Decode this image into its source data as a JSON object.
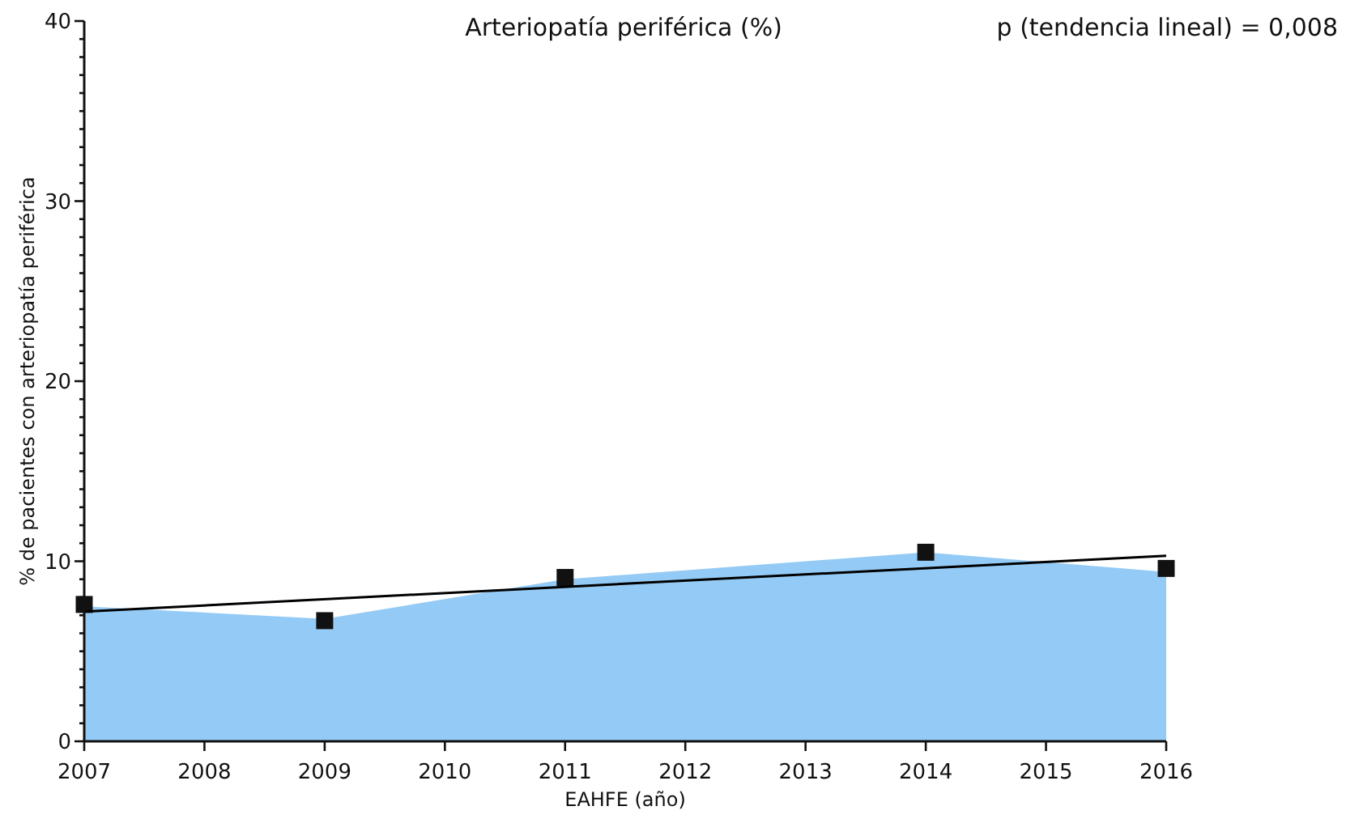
{
  "chart_data": {
    "type": "area",
    "title": "Arteriopatía periférica (%)",
    "xlabel": "EAHFE (año)",
    "ylabel": "% de pacientes con arteriopatía periférica",
    "annotations": [
      "p (tendencia lineal) = 0,008"
    ],
    "x": [
      2007,
      2009,
      2011,
      2014,
      2016
    ],
    "xlim": [
      2007,
      2016
    ],
    "xticks": [
      2007,
      2008,
      2009,
      2010,
      2011,
      2012,
      2013,
      2014,
      2015,
      2016
    ],
    "ylim": [
      0,
      40
    ],
    "yticks": [
      0,
      {
        "value": 1,
        "label": null
      },
      {
        "value": 2,
        "label": null
      },
      {
        "value": 3,
        "label": null
      },
      {
        "value": 4,
        "label": null
      },
      {
        "value": 5,
        "label": null
      },
      {
        "value": 6,
        "label": null
      },
      {
        "value": 7,
        "label": null
      },
      {
        "value": 8,
        "label": null
      },
      {
        "value": 9,
        "label": null
      },
      10,
      {
        "value": 11,
        "label": null
      },
      {
        "value": 12,
        "label": null
      },
      {
        "value": 13,
        "label": null
      },
      {
        "value": 14,
        "label": null
      },
      {
        "value": 15,
        "label": null
      },
      {
        "value": 16,
        "label": null
      },
      {
        "value": 17,
        "label": null
      },
      {
        "value": 18,
        "label": null
      },
      {
        "value": 19,
        "label": null
      },
      20,
      {
        "value": 21,
        "label": null
      },
      {
        "value": 22,
        "label": null
      },
      {
        "value": 23,
        "label": null
      },
      {
        "value": 24,
        "label": null
      },
      {
        "value": 25,
        "label": null
      },
      {
        "value": 26,
        "label": null
      },
      {
        "value": 27,
        "label": null
      },
      {
        "value": 28,
        "label": null
      },
      {
        "value": 29,
        "label": null
      },
      30,
      {
        "value": 31,
        "label": null
      },
      {
        "value": 32,
        "label": null
      },
      {
        "value": 33,
        "label": null
      },
      {
        "value": 34,
        "label": null
      },
      {
        "value": 35,
        "label": null
      },
      {
        "value": 36,
        "label": null
      },
      {
        "value": 37,
        "label": null
      },
      {
        "value": 38,
        "label": null
      },
      {
        "value": 39,
        "label": null
      },
      40
    ],
    "grid": false,
    "series": [
      {
        "color": "#94cbf6",
        "values": [
          7.5,
          6.8,
          9.0,
          10.5,
          9.4
        ]
      },
      {
        "type": "scatter",
        "color": "#111111",
        "marker": "square",
        "values": [
          7.6,
          6.7,
          9.1,
          10.5,
          9.6
        ]
      },
      {
        "type": "line",
        "color": "#000000",
        "x": [
          2007,
          2016
        ],
        "values": [
          7.2,
          10.3
        ]
      }
    ]
  }
}
